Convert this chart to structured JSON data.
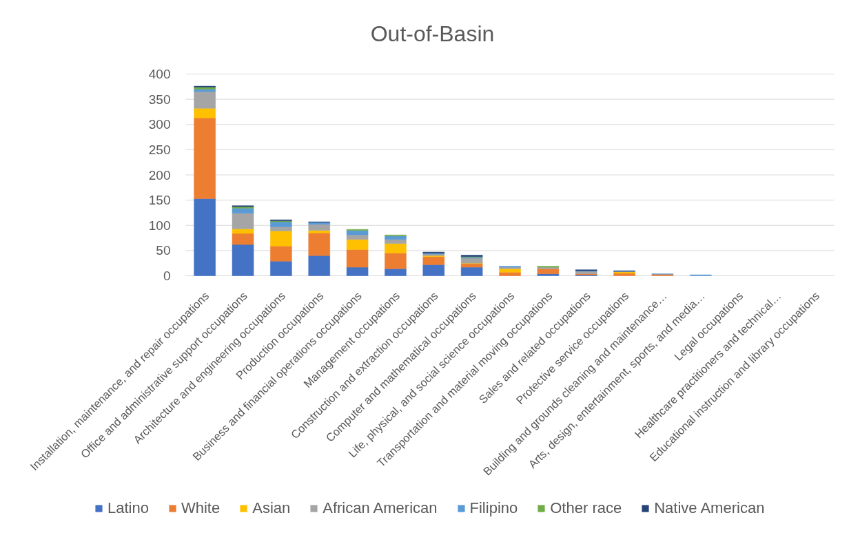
{
  "chart_data": {
    "type": "bar",
    "title": "Out-of-Basin",
    "stacked": true,
    "grid": "y",
    "legend": "bottom",
    "categories": [
      "Installation, maintenance, and repair occupations",
      "Office and administrative support occupations",
      "Architecture and engineering occupations",
      "Production occupations",
      "Business and financial operations occupations",
      "Management occupations",
      "Construction and extraction occupations",
      "Computer and mathematical occupations",
      "Life, physical, and social science occupations",
      "Transportation and material moving occupations",
      "Sales and related occupations",
      "Protective service occupations",
      "Building and grounds cleaning and maintenance…",
      "Arts, design, entertainment, sports, and media…",
      "Legal occupations",
      "Healthcare practitioners and technical…",
      "Educational instruction and library occupations"
    ],
    "ylim": [
      0,
      400
    ],
    "yticks": [
      0,
      50,
      100,
      150,
      200,
      250,
      300,
      350,
      400
    ],
    "series": [
      {
        "name": "Latino",
        "color": "#4472c4",
        "values": [
          153,
          62,
          29,
          40,
          17,
          14,
          22,
          17,
          null,
          4,
          2,
          null,
          null,
          null,
          null,
          null,
          null
        ]
      },
      {
        "name": "White",
        "color": "#ed7d31",
        "values": [
          160,
          22,
          30,
          45,
          35,
          31,
          16,
          7,
          7,
          10,
          2,
          5,
          3,
          null,
          null,
          null,
          null
        ]
      },
      {
        "name": "Asian",
        "color": "#ffc000",
        "values": [
          19,
          9,
          30,
          5,
          20,
          19,
          2,
          1,
          7,
          null,
          null,
          3,
          null,
          null,
          null,
          null,
          null
        ]
      },
      {
        "name": "African American",
        "color": "#a5a5a5",
        "values": [
          33,
          31,
          8,
          12,
          9,
          8,
          3,
          10,
          3,
          3,
          5,
          null,
          null,
          null,
          null,
          null,
          null
        ]
      },
      {
        "name": "Filipino",
        "color": "#5b9bd5",
        "values": [
          5,
          10,
          10,
          4,
          9,
          7,
          2,
          2,
          2,
          null,
          1,
          1,
          1,
          2,
          null,
          null,
          null
        ]
      },
      {
        "name": "Other race",
        "color": "#70ad47",
        "values": [
          4,
          3,
          2,
          null,
          2,
          2,
          null,
          1,
          null,
          2,
          null,
          null,
          null,
          null,
          null,
          null,
          null
        ]
      },
      {
        "name": "Native American",
        "color": "#264478",
        "values": [
          2,
          2,
          2,
          1,
          null,
          null,
          2,
          3,
          null,
          null,
          2,
          1,
          null,
          null,
          null,
          null,
          null
        ]
      }
    ]
  }
}
